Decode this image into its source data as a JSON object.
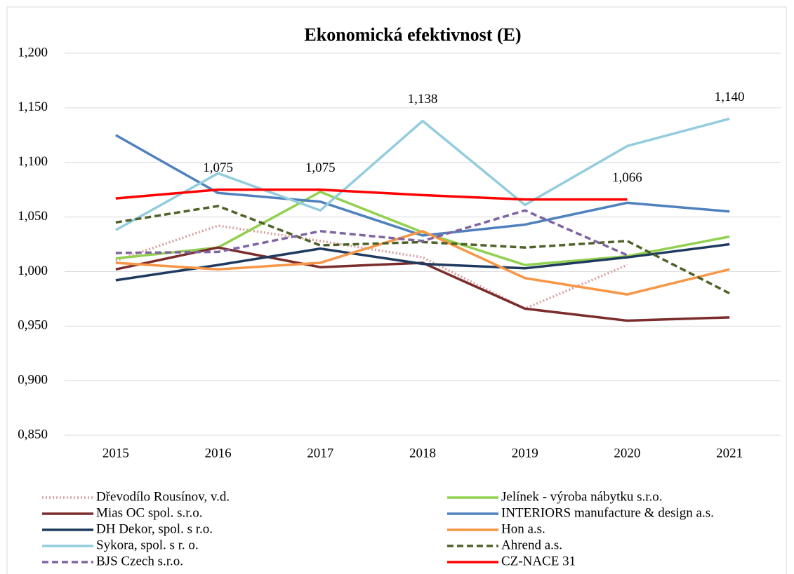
{
  "chart_data": {
    "type": "line",
    "title": "Ekonomická efektivnost (E)",
    "categories": [
      "2015",
      "2016",
      "2017",
      "2018",
      "2019",
      "2020",
      "2021"
    ],
    "ylim": [
      0.85,
      1.2
    ],
    "yticks": [
      {
        "value": 0.85,
        "label": "0,850"
      },
      {
        "value": 0.9,
        "label": "0,900"
      },
      {
        "value": 0.95,
        "label": "0,950"
      },
      {
        "value": 1.0,
        "label": "1,000"
      },
      {
        "value": 1.05,
        "label": "1,050"
      },
      {
        "value": 1.1,
        "label": "1,100"
      },
      {
        "value": 1.15,
        "label": "1,150"
      },
      {
        "value": 1.2,
        "label": "1,200"
      }
    ],
    "grid": true,
    "series": [
      {
        "name": "Dřevodílo Rousínov, v.d.",
        "color": "#d9a0a0",
        "style": "dotted",
        "values": [
          1.01,
          1.042,
          1.028,
          1.013,
          0.966,
          1.006,
          null
        ]
      },
      {
        "name": "Jelínek - výroba nábytku s.r.o.",
        "color": "#92d050",
        "style": "solid",
        "values": [
          1.012,
          1.022,
          1.073,
          1.036,
          1.006,
          1.014,
          1.032
        ]
      },
      {
        "name": "Mias OC spol. s.r.o.",
        "color": "#7b2c2c",
        "style": "solid",
        "values": [
          1.002,
          1.022,
          1.004,
          1.008,
          0.966,
          0.955,
          0.958
        ]
      },
      {
        "name": "INTERIORS manufacture & design a.s.",
        "color": "#4f81bd",
        "style": "solid",
        "values": [
          1.125,
          1.072,
          1.064,
          1.033,
          1.043,
          1.063,
          1.055
        ]
      },
      {
        "name": "DH Dekor, spol. s r.o.",
        "color": "#1f3a5f",
        "style": "solid",
        "values": [
          0.992,
          1.006,
          1.021,
          1.007,
          1.003,
          1.013,
          1.025
        ]
      },
      {
        "name": "Hon a.s.",
        "color": "#f79646",
        "style": "solid",
        "values": [
          1.008,
          1.002,
          1.008,
          1.037,
          0.994,
          0.979,
          1.002
        ]
      },
      {
        "name": "Sykora, spol. s r. o.",
        "color": "#93cddd",
        "style": "solid",
        "values": [
          1.038,
          1.09,
          1.056,
          1.138,
          1.061,
          1.115,
          1.14
        ],
        "value_labels": [
          null,
          null,
          null,
          "1,138",
          null,
          null,
          "1,140"
        ]
      },
      {
        "name": "Ahrend a.s.",
        "color": "#4f6228",
        "style": "dashed",
        "values": [
          1.045,
          1.06,
          1.024,
          1.027,
          1.022,
          1.028,
          0.98
        ]
      },
      {
        "name": "BJS Czech s.r.o.",
        "color": "#8064a2",
        "style": "dashed",
        "values": [
          1.017,
          1.018,
          1.037,
          1.028,
          1.056,
          1.015,
          null
        ]
      },
      {
        "name": "CZ-NACE 31",
        "color": "#ff0000",
        "style": "solid",
        "values": [
          1.067,
          1.075,
          1.075,
          1.07,
          1.066,
          1.066,
          null
        ],
        "value_labels": [
          null,
          "1,075",
          "1,075",
          null,
          null,
          "1,066",
          null
        ]
      }
    ]
  }
}
